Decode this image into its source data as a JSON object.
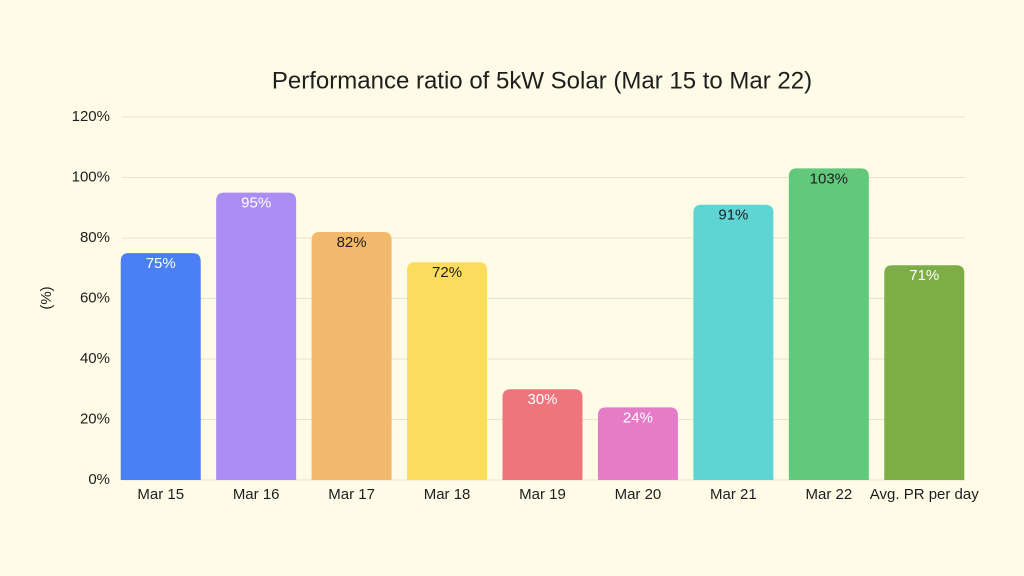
{
  "chart_data": {
    "type": "bar",
    "title": "Performance ratio of 5kW Solar (Mar 15 to Mar 22)",
    "y_label": "(%)",
    "categories": [
      "Mar 15",
      "Mar 16",
      "Mar 17",
      "Mar 18",
      "Mar 19",
      "Mar 20",
      "Mar 21",
      "Mar 22",
      "Avg. PR per day"
    ],
    "values": [
      75,
      95,
      82,
      72,
      30,
      24,
      91,
      103,
      71
    ],
    "value_labels": [
      "75%",
      "95%",
      "82%",
      "72%",
      "30%",
      "24%",
      "91%",
      "103%",
      "71%"
    ],
    "colors": [
      "#4a7ff7",
      "#ab8df5",
      "#f2b86c",
      "#fcdc5c",
      "#ee757c",
      "#e67cc8",
      "#5ed4d4",
      "#62c87c",
      "#7cad46"
    ],
    "label_colors": [
      "#ffffff",
      "#ffffff",
      "#1e1e1e",
      "#1e1e1e",
      "#ffffff",
      "#ffffff",
      "#1e1e1e",
      "#1e1e1e",
      "#ffffff"
    ],
    "ylim": [
      0,
      120
    ],
    "yticks": [
      {
        "value": 0,
        "label": "0%"
      },
      {
        "value": 20,
        "label": "20%"
      },
      {
        "value": 40,
        "label": "40%"
      },
      {
        "value": 60,
        "label": "60%"
      },
      {
        "value": 80,
        "label": "80%"
      },
      {
        "value": 100,
        "label": "100%"
      },
      {
        "value": 120,
        "label": "120%"
      }
    ],
    "grid": true
  }
}
